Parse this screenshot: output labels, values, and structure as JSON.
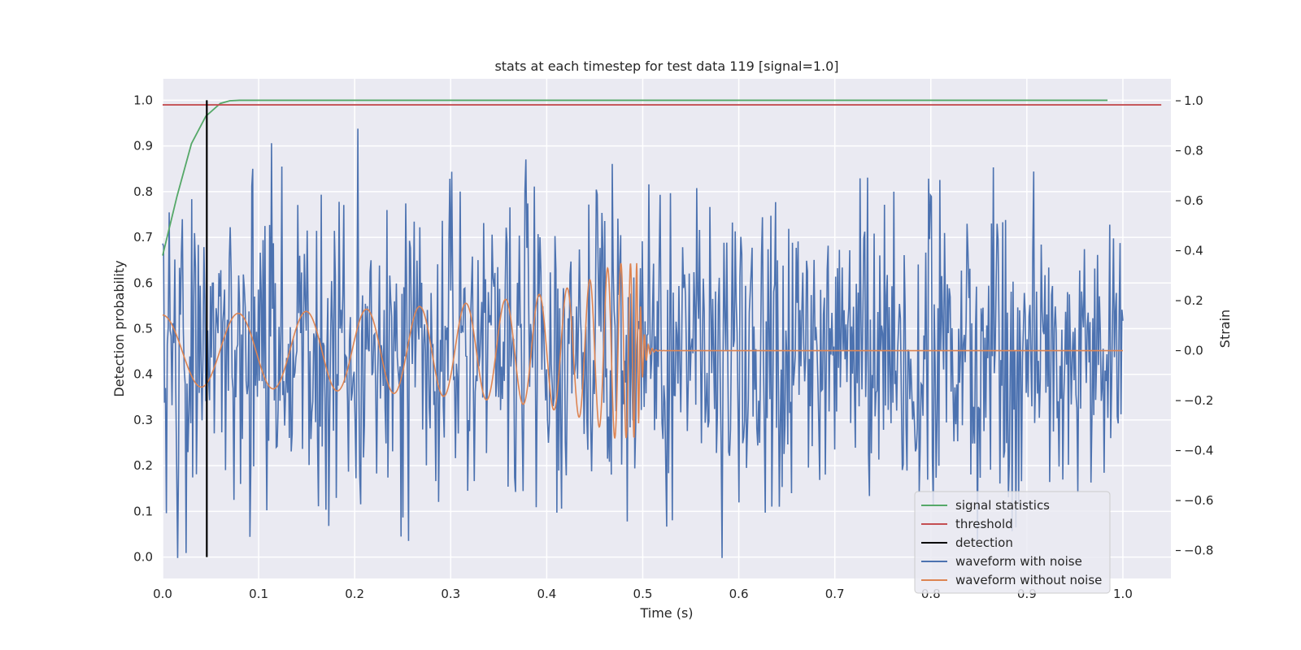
{
  "chart_data": {
    "type": "line",
    "title": "stats at each timestep for test data 119 [signal=1.0]",
    "xlabel": "Time (s)",
    "ylabel": "Detection probability",
    "y2label": "Strain",
    "xlim": [
      0.0,
      1.05
    ],
    "ylim": [
      -0.047,
      1.047
    ],
    "y2lim": [
      -0.912,
      1.088
    ],
    "x_ticks": [
      0.0,
      0.1,
      0.2,
      0.3,
      0.4,
      0.5,
      0.6,
      0.7,
      0.8,
      0.9,
      1.0
    ],
    "x_tick_labels": [
      "0.0",
      "0.1",
      "0.2",
      "0.3",
      "0.4",
      "0.5",
      "0.6",
      "0.7",
      "0.8",
      "0.9",
      "1.0"
    ],
    "y_ticks": [
      0.0,
      0.1,
      0.2,
      0.3,
      0.4,
      0.5,
      0.6,
      0.7,
      0.8,
      0.9,
      1.0
    ],
    "y_tick_labels": [
      "0.0",
      "0.1",
      "0.2",
      "0.3",
      "0.4",
      "0.5",
      "0.6",
      "0.7",
      "0.8",
      "0.9",
      "1.0"
    ],
    "y2_ticks": [
      -0.8,
      -0.6,
      -0.4,
      -0.2,
      0.0,
      0.2,
      0.4,
      0.6,
      0.8,
      1.0
    ],
    "y2_tick_labels": [
      "−0.8",
      "−0.6",
      "−0.4",
      "−0.2",
      "0.0",
      "0.2",
      "0.4",
      "0.6",
      "0.8",
      "1.0"
    ],
    "grid": true,
    "legend_position": "lower-right",
    "colors": {
      "background": "#eaeaf2",
      "grid": "#ffffff",
      "signal_statistics": "#55a868",
      "threshold": "#c44e52",
      "detection": "#000000",
      "waveform_with_noise": "#4c72b0",
      "waveform_without_noise": "#dd8452"
    },
    "series": [
      {
        "name": "signal statistics",
        "axis": "left",
        "x": [
          0.0,
          0.015,
          0.03,
          0.045,
          0.06,
          0.07,
          0.08,
          0.1,
          0.2,
          0.4,
          0.6,
          0.8,
          0.984
        ],
        "y": [
          0.66,
          0.79,
          0.905,
          0.965,
          0.993,
          0.999,
          1.0,
          1.0,
          1.0,
          1.0,
          1.0,
          1.0,
          1.0
        ]
      },
      {
        "name": "threshold",
        "axis": "left",
        "x": [
          0.0,
          1.04
        ],
        "y": [
          0.99,
          0.99
        ]
      },
      {
        "name": "detection",
        "axis": "left",
        "x": [
          0.046,
          0.046
        ],
        "y": [
          0.0,
          1.0
        ]
      },
      {
        "name": "waveform with noise",
        "axis": "right",
        "generator": "noise",
        "x_range": [
          0.0,
          1.0
        ],
        "samples": 1024,
        "amplitude_limit": [
          -0.83,
          1.0
        ]
      },
      {
        "name": "waveform without noise",
        "axis": "right",
        "generator": "chirp",
        "x_range": [
          0.0,
          1.0
        ],
        "merger_time": 0.495,
        "peak_amplitude": 0.35
      }
    ],
    "legend": [
      "signal statistics",
      "threshold",
      "detection",
      "waveform with noise",
      "waveform without noise"
    ]
  }
}
